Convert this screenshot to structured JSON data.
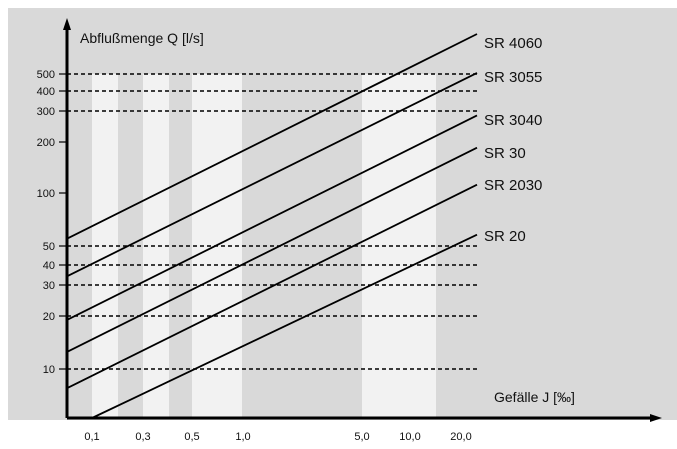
{
  "colors": {
    "background": "#d9d9d9",
    "band": "#f2f2f2",
    "line": "#000000",
    "grid": "#000000"
  },
  "chart_data": {
    "type": "line",
    "title": "",
    "ylabel": "Abflußmenge Q [l/s]",
    "xlabel": "Gefälle J [‰]",
    "y_scale": "log",
    "y_ticks": [
      {
        "value": 10,
        "label": "10"
      },
      {
        "value": 20,
        "label": "20"
      },
      {
        "value": 30,
        "label": "30"
      },
      {
        "value": 40,
        "label": "40"
      },
      {
        "value": 50,
        "label": "50"
      },
      {
        "value": 100,
        "label": "100"
      },
      {
        "value": 200,
        "label": "200"
      },
      {
        "value": 300,
        "label": "300"
      },
      {
        "value": 400,
        "label": "400"
      },
      {
        "value": 500,
        "label": "500"
      }
    ],
    "x_ticks": [
      {
        "value": 0.1,
        "label": "0,1"
      },
      {
        "value": 0.3,
        "label": "0,3"
      },
      {
        "value": 0.5,
        "label": "0,5"
      },
      {
        "value": 1.0,
        "label": "1,0"
      },
      {
        "value": 5.0,
        "label": "5,0"
      },
      {
        "value": 10.0,
        "label": "10,0"
      },
      {
        "value": 20.0,
        "label": "20,0"
      }
    ],
    "gridlines_y": [
      10,
      20,
      30,
      40,
      50,
      300,
      400,
      500
    ],
    "bands_x": [
      0.1,
      0.3,
      0.5,
      1.0,
      5.0,
      10.0
    ],
    "series": [
      {
        "name": "SR 4060",
        "x": [
          0.02,
          30.0
        ],
        "y": [
          55,
          715
        ]
      },
      {
        "name": "SR 3055",
        "x": [
          0.02,
          30.0
        ],
        "y": [
          34,
          505
        ]
      },
      {
        "name": "SR 3040",
        "x": [
          0.02,
          30.0
        ],
        "y": [
          19,
          283
        ]
      },
      {
        "name": "SR 30",
        "x": [
          0.02,
          30.0
        ],
        "y": [
          12.5,
          185
        ]
      },
      {
        "name": "SR 2030",
        "x": [
          0.02,
          30.0
        ],
        "y": [
          7.5,
          112
        ]
      },
      {
        "name": "SR 20",
        "x": [
          0.1,
          30.0
        ],
        "y": [
          4.8,
          58
        ]
      }
    ]
  }
}
